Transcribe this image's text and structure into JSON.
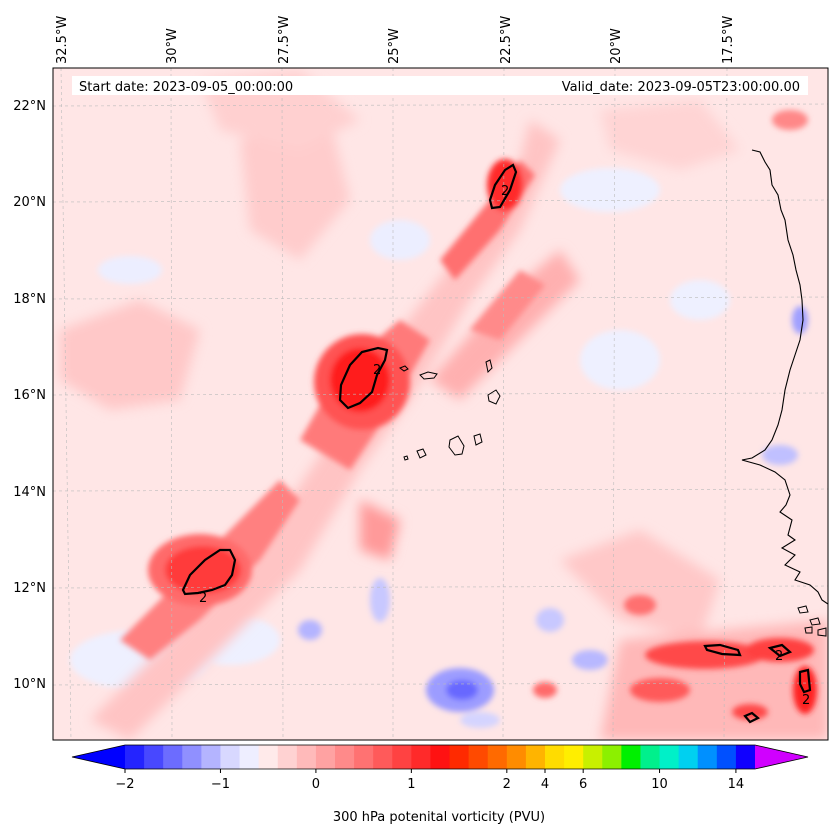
{
  "header": {
    "start_date": "Start date: 2023-09-05_00:00:00",
    "valid_date": "Valid_date: 2023-09-05T23:00:00.00"
  },
  "chart_data": {
    "type": "heatmap",
    "title": "",
    "variable": "300 hPa potenital vorticity (PVU)",
    "xlabel": "",
    "ylabel": "",
    "lon_range": [
      -33.0,
      -15.6
    ],
    "lat_range": [
      9.0,
      22.8
    ],
    "lon_ticks": [
      {
        "value": -32.5,
        "label": "32.5°W"
      },
      {
        "value": -30.0,
        "label": "30°W"
      },
      {
        "value": -27.5,
        "label": "27.5°W"
      },
      {
        "value": -25.0,
        "label": "25°W"
      },
      {
        "value": -22.5,
        "label": "22.5°W"
      },
      {
        "value": -20.0,
        "label": "20°W"
      },
      {
        "value": -17.5,
        "label": "17.5°W"
      }
    ],
    "lat_ticks": [
      {
        "value": 10,
        "label": "10°N"
      },
      {
        "value": 12,
        "label": "12°N"
      },
      {
        "value": 14,
        "label": "14°N"
      },
      {
        "value": 16,
        "label": "16°N"
      },
      {
        "value": 18,
        "label": "18°N"
      },
      {
        "value": 20,
        "label": "20°N"
      },
      {
        "value": 22,
        "label": "22°N"
      }
    ],
    "grid": true,
    "contour_level": 2,
    "contour_label": "2",
    "features": [
      {
        "name": "pv-max-southwest",
        "lon": -29.6,
        "lat": 12.2,
        "peak": 2.6
      },
      {
        "name": "pv-max-central",
        "lon": -25.6,
        "lat": 16.3,
        "peak": 2.7
      },
      {
        "name": "pv-max-north",
        "lon": -22.3,
        "lat": 20.3,
        "peak": 2.4
      }
    ],
    "colorbar": {
      "levels": [
        -2,
        -1.8,
        -1.6,
        -1.4,
        -1.2,
        -1,
        -0.8,
        -0.6,
        -0.4,
        -0.2,
        0,
        0.2,
        0.4,
        0.6,
        0.8,
        1,
        1.2,
        1.4,
        1.6,
        1.8,
        2,
        3,
        4,
        5,
        6,
        7,
        8,
        9,
        10,
        11,
        12,
        13,
        14,
        15
      ],
      "colors": [
        "#0000ff",
        "#2424ff",
        "#4848ff",
        "#6c6cff",
        "#9090ff",
        "#b4b4ff",
        "#d8d8ff",
        "#eeeeff",
        "#ffeaea",
        "#ffd2d2",
        "#ffbaba",
        "#ffa2a2",
        "#ff8a8a",
        "#ff7272",
        "#ff5a5a",
        "#ff4242",
        "#ff2a2a",
        "#ff1212",
        "#ff2a00",
        "#ff4a00",
        "#ff6a00",
        "#ff8c00",
        "#ffb400",
        "#ffdc00",
        "#ffee00",
        "#c8f000",
        "#8cf000",
        "#00f000",
        "#00f08c",
        "#00f0c8",
        "#00d0f0",
        "#0090ff",
        "#0050ff",
        "#1000ff",
        "#7000ff",
        "#b000ff",
        "#d000ff"
      ],
      "tick_values": [
        -2,
        -1,
        0,
        1,
        2,
        4,
        6,
        10,
        14
      ],
      "tick_labels": [
        "−2",
        "−1",
        "0",
        "1",
        "2",
        "4",
        "6",
        "10",
        "14"
      ],
      "label": "300 hPa potenital vorticity (PVU)"
    },
    "colors": {
      "background_field": "#ffe6e6",
      "contour": "#000000",
      "coastline": "#000000",
      "grid": "#bbbbbb"
    }
  }
}
